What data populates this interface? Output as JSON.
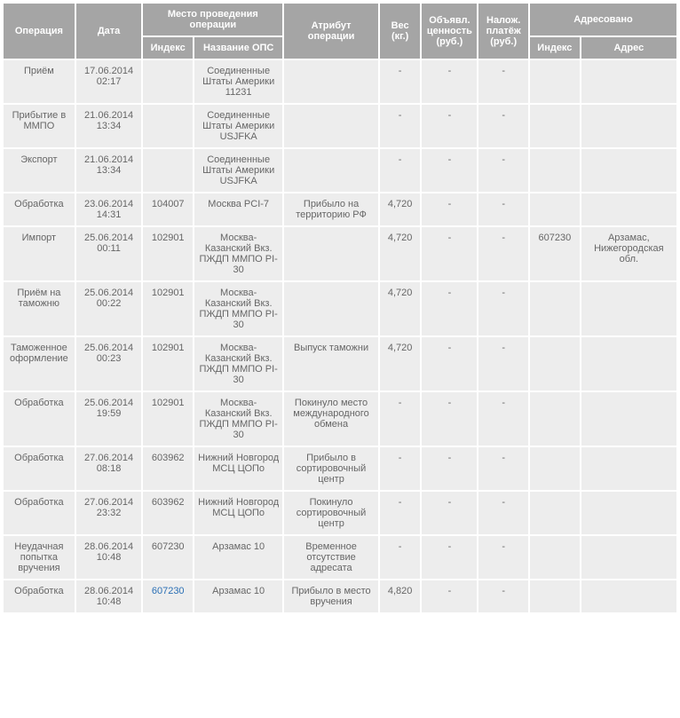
{
  "headers": {
    "operation": "Операция",
    "date": "Дата",
    "place_group": "Место проведения операции",
    "index": "Индекс",
    "ops_name": "Название ОПС",
    "attribute": "Атрибут операции",
    "weight": "Вес (кг.)",
    "declared_value": "Объявл. ценность (руб.)",
    "cod": "Налож. платёж (руб.)",
    "addressed_group": "Адресовано",
    "dest_index": "Индекс",
    "dest_addr": "Адрес"
  },
  "rows": [
    {
      "operation": "Приём",
      "date": "17.06.2014 02:17",
      "index": "",
      "ops": "Соединенные Штаты Америки 11231",
      "attr": "",
      "weight": "-",
      "dval": "-",
      "cod": "-",
      "didx": "",
      "daddr": ""
    },
    {
      "operation": "Прибытие в ММПО",
      "date": "21.06.2014 13:34",
      "index": "",
      "ops": "Соединенные Штаты Америки USJFKA",
      "attr": "",
      "weight": "-",
      "dval": "-",
      "cod": "-",
      "didx": "",
      "daddr": ""
    },
    {
      "operation": "Экспорт",
      "date": "21.06.2014 13:34",
      "index": "",
      "ops": "Соединенные Штаты Америки USJFKA",
      "attr": "",
      "weight": "-",
      "dval": "-",
      "cod": "-",
      "didx": "",
      "daddr": ""
    },
    {
      "operation": "Обработка",
      "date": "23.06.2014 14:31",
      "index": "104007",
      "ops": "Москва PCI-7",
      "attr": "Прибыло на территорию РФ",
      "weight": "4,720",
      "dval": "-",
      "cod": "-",
      "didx": "",
      "daddr": ""
    },
    {
      "operation": "Импорт",
      "date": "25.06.2014 00:11",
      "index": "102901",
      "ops": "Москва-Казанский Вкз. ПЖДП ММПО PI-30",
      "attr": "",
      "weight": "4,720",
      "dval": "-",
      "cod": "-",
      "didx": "607230",
      "daddr": "Арзамас, Нижегородская обл."
    },
    {
      "operation": "Приём на таможню",
      "date": "25.06.2014 00:22",
      "index": "102901",
      "ops": "Москва-Казанский Вкз. ПЖДП ММПО PI-30",
      "attr": "",
      "weight": "4,720",
      "dval": "-",
      "cod": "-",
      "didx": "",
      "daddr": ""
    },
    {
      "operation": "Таможенное оформление",
      "date": "25.06.2014 00:23",
      "index": "102901",
      "ops": "Москва-Казанский Вкз. ПЖДП ММПО PI-30",
      "attr": "Выпуск таможни",
      "weight": "4,720",
      "dval": "-",
      "cod": "-",
      "didx": "",
      "daddr": ""
    },
    {
      "operation": "Обработка",
      "date": "25.06.2014 19:59",
      "index": "102901",
      "ops": "Москва-Казанский Вкз. ПЖДП ММПО PI-30",
      "attr": "Покинуло место международного обмена",
      "weight": "-",
      "dval": "-",
      "cod": "-",
      "didx": "",
      "daddr": ""
    },
    {
      "operation": "Обработка",
      "date": "27.06.2014 08:18",
      "index": "603962",
      "ops": "Нижний Новгород МСЦ ЦОПо",
      "attr": "Прибыло в сортировочный центр",
      "weight": "-",
      "dval": "-",
      "cod": "-",
      "didx": "",
      "daddr": ""
    },
    {
      "operation": "Обработка",
      "date": "27.06.2014 23:32",
      "index": "603962",
      "ops": "Нижний Новгород МСЦ ЦОПо",
      "attr": "Покинуло сортировочный центр",
      "weight": "-",
      "dval": "-",
      "cod": "-",
      "didx": "",
      "daddr": ""
    },
    {
      "operation": "Неудачная попытка вручения",
      "date": "28.06.2014 10:48",
      "index": "607230",
      "ops": "Арзамас 10",
      "attr": "Временное отсутствие адресата",
      "weight": "-",
      "dval": "-",
      "cod": "-",
      "didx": "",
      "daddr": ""
    },
    {
      "operation": "Обработка",
      "date": "28.06.2014 10:48",
      "index": "607230",
      "index_link": true,
      "ops": "Арзамас 10",
      "attr": "Прибыло в место вручения",
      "weight": "4,820",
      "dval": "-",
      "cod": "-",
      "didx": "",
      "daddr": ""
    }
  ],
  "colors": {
    "header_bg": "#a5a5a5",
    "header_text": "#ffffff",
    "cell_bg": "#ededed",
    "cell_text": "#666666",
    "link_text": "#2a6fb5"
  }
}
